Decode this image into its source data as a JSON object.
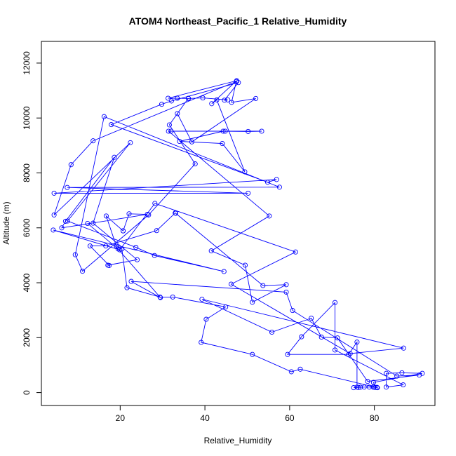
{
  "chart_data": {
    "type": "line",
    "title": "ATOM4 Northeast_Pacific_1 Relative_Humidity",
    "xlabel": "Relative_Humidity",
    "ylabel": "Altitude (m)",
    "xlim": [
      1.4,
      94.3
    ],
    "ylim": [
      -470,
      12790
    ],
    "xticks": [
      20,
      40,
      60,
      80
    ],
    "yticks": [
      0,
      2000,
      4000,
      6000,
      8000,
      10000,
      12000
    ],
    "markers": "open-circle",
    "grid": false,
    "series": [
      {
        "color": "#0000ff",
        "points": [
          [
            75.1,
            180
          ],
          [
            76.2,
            190
          ],
          [
            76.7,
            195
          ],
          [
            77.6,
            200
          ],
          [
            78.8,
            200
          ],
          [
            79.9,
            200
          ],
          [
            80.6,
            190
          ],
          [
            80.2,
            190
          ],
          [
            79.8,
            370
          ],
          [
            91.3,
            700
          ],
          [
            86.5,
            720
          ],
          [
            82.8,
            700
          ],
          [
            82.8,
            200
          ],
          [
            86.8,
            280
          ],
          [
            70.7,
            1550
          ],
          [
            70.7,
            3280
          ],
          [
            62.8,
            2030
          ],
          [
            59.5,
            1390
          ],
          [
            73.9,
            1390
          ],
          [
            75.9,
            1840
          ],
          [
            75.9,
            200
          ],
          [
            79.7,
            200
          ],
          [
            80.7,
            180
          ],
          [
            62.5,
            850
          ],
          [
            60.4,
            760
          ],
          [
            51.2,
            1390
          ],
          [
            39.1,
            1830
          ],
          [
            40.3,
            2670
          ],
          [
            44.9,
            3120
          ],
          [
            32.4,
            3480
          ],
          [
            29.4,
            3480
          ],
          [
            21.6,
            3820
          ],
          [
            20.4,
            5230
          ],
          [
            19.1,
            5330
          ],
          [
            16.7,
            6430
          ],
          [
            20.7,
            5890
          ],
          [
            20.7,
            5890
          ],
          [
            22.1,
            6510
          ],
          [
            26.4,
            6490
          ],
          [
            6.2,
            6000
          ],
          [
            7.1,
            6240
          ],
          [
            18.6,
            8570
          ],
          [
            13.6,
            6170
          ],
          [
            24,
            4840
          ],
          [
            17.1,
            4640
          ],
          [
            17.4,
            4630
          ],
          [
            12.9,
            5340
          ],
          [
            16.6,
            5340
          ],
          [
            28.6,
            5900
          ],
          [
            33,
            6540
          ],
          [
            33.1,
            6530
          ],
          [
            53.7,
            3900
          ],
          [
            59.2,
            3930
          ],
          [
            51.2,
            3290
          ],
          [
            49.5,
            4640
          ],
          [
            41.5,
            5160
          ],
          [
            55.2,
            6430
          ],
          [
            31.4,
            9520
          ],
          [
            32,
            9520
          ],
          [
            44.8,
            9520
          ],
          [
            53.4,
            9520
          ],
          [
            50.2,
            9510
          ],
          [
            44.3,
            9520
          ],
          [
            34,
            9150
          ],
          [
            44.1,
            9070
          ],
          [
            49.4,
            8040
          ],
          [
            42.8,
            10660
          ],
          [
            41.6,
            10520
          ],
          [
            47.5,
            11360
          ],
          [
            31.3,
            10720
          ],
          [
            33.5,
            10720
          ],
          [
            36.1,
            10710
          ],
          [
            39.5,
            10730
          ],
          [
            45.4,
            10660
          ],
          [
            44.6,
            10650
          ],
          [
            47.9,
            11290
          ],
          [
            32.1,
            10620
          ],
          [
            29.8,
            10500
          ],
          [
            17.9,
            9760
          ],
          [
            54.8,
            7660
          ],
          [
            56.9,
            7760
          ],
          [
            4.4,
            7260
          ],
          [
            50.2,
            7260
          ],
          [
            7.5,
            7470
          ],
          [
            57.6,
            7480
          ],
          [
            16.2,
            10050
          ],
          [
            9.4,
            5020
          ],
          [
            11.1,
            4420
          ],
          [
            26.7,
            6470
          ],
          [
            37.7,
            8330
          ],
          [
            31.6,
            9750
          ],
          [
            36.1,
            10720
          ],
          [
            33.5,
            10160
          ],
          [
            36.9,
            9130
          ],
          [
            52,
            10710
          ],
          [
            46.3,
            10570
          ],
          [
            47.4,
            11330
          ],
          [
            13.6,
            9170
          ],
          [
            8.4,
            8300
          ],
          [
            4.4,
            6470
          ],
          [
            22.4,
            9100
          ],
          [
            7.6,
            6250
          ],
          [
            23.7,
            5290
          ],
          [
            28.1,
            4990
          ],
          [
            44.5,
            4410
          ],
          [
            4.2,
            5920
          ],
          [
            19.9,
            5200
          ],
          [
            28.2,
            6890
          ],
          [
            61.4,
            5120
          ],
          [
            46.2,
            3950
          ],
          [
            74.3,
            1420
          ],
          [
            86.9,
            1620
          ],
          [
            39.3,
            3400
          ],
          [
            55.8,
            2200
          ],
          [
            65.1,
            2710
          ],
          [
            67.5,
            2020
          ],
          [
            71.3,
            1990
          ],
          [
            78.4,
            410
          ],
          [
            90.6,
            640
          ],
          [
            85.3,
            600
          ],
          [
            60.7,
            2990
          ],
          [
            59.2,
            3660
          ],
          [
            22.6,
            4050
          ],
          [
            29.5,
            3460
          ],
          [
            19.5,
            5230
          ],
          [
            12.3,
            6160
          ]
        ]
      }
    ]
  }
}
